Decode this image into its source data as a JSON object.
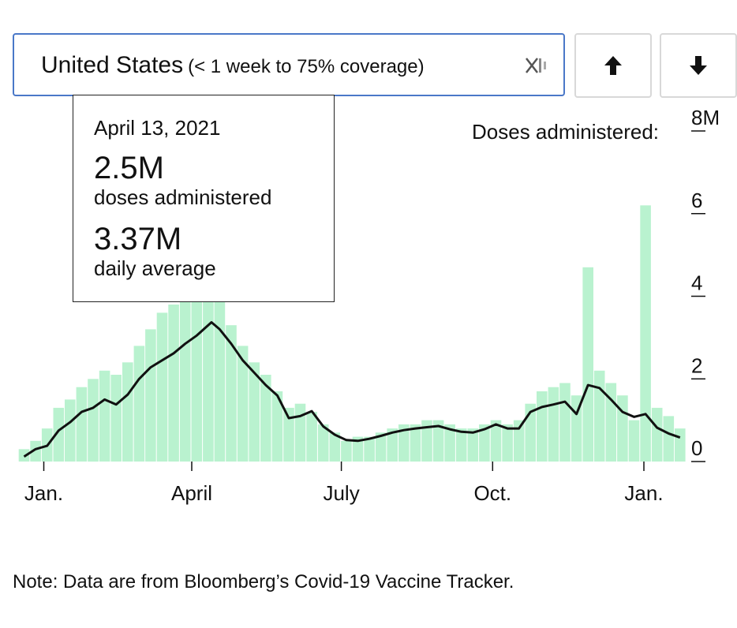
{
  "selector": {
    "country": "United States",
    "note": "(< 1 week to 75% coverage)",
    "clear_icon": "clear-x-icon"
  },
  "buttons": {
    "up_icon": "arrow-up-icon",
    "down_icon": "arrow-down-icon"
  },
  "tooltip": {
    "date": "April 13, 2021",
    "doses_value": "2.5M",
    "doses_label": "doses administered",
    "average_value": "3.37M",
    "average_label": "daily average"
  },
  "colors": {
    "bars": "#b9f2cf",
    "line": "#111111",
    "select_border": "#4a78c8"
  },
  "note": "Note: Data are from Bloomberg’s Covid-19 Vaccine Tracker.",
  "chart_data": {
    "type": "bar",
    "title": "",
    "ylabel": "Doses administered:",
    "yunit": "M",
    "ylim": [
      0,
      8
    ],
    "yticks": [
      0,
      2,
      4,
      6,
      8
    ],
    "ytick_labels": [
      "0",
      "2",
      "4",
      "6",
      "8M"
    ],
    "xlim": [
      "2020-12-14",
      "2022-01-25"
    ],
    "xticks": [
      {
        "date": "2021-01-01",
        "label": "Jan."
      },
      {
        "date": "2021-04-01",
        "label": "April"
      },
      {
        "date": "2021-07-01",
        "label": "July"
      },
      {
        "date": "2021-10-01",
        "label": "Oct."
      },
      {
        "date": "2022-01-01",
        "label": "Jan."
      }
    ],
    "series": [
      {
        "name": "doses administered",
        "values": [
          [
            "2020-12-20",
            0.3
          ],
          [
            "2020-12-27",
            0.5
          ],
          [
            "2021-01-03",
            0.8
          ],
          [
            "2021-01-10",
            1.3
          ],
          [
            "2021-01-17",
            1.5
          ],
          [
            "2021-01-24",
            1.8
          ],
          [
            "2021-01-31",
            2.0
          ],
          [
            "2021-02-07",
            2.2
          ],
          [
            "2021-02-14",
            2.1
          ],
          [
            "2021-02-21",
            2.4
          ],
          [
            "2021-02-28",
            2.8
          ],
          [
            "2021-03-07",
            3.2
          ],
          [
            "2021-03-14",
            3.6
          ],
          [
            "2021-03-21",
            3.8
          ],
          [
            "2021-03-28",
            4.1
          ],
          [
            "2021-04-04",
            4.0
          ],
          [
            "2021-04-11",
            4.2
          ],
          [
            "2021-04-18",
            3.9
          ],
          [
            "2021-04-25",
            3.3
          ],
          [
            "2021-05-02",
            2.8
          ],
          [
            "2021-05-09",
            2.4
          ],
          [
            "2021-05-16",
            2.1
          ],
          [
            "2021-05-23",
            1.7
          ],
          [
            "2021-05-30",
            1.3
          ],
          [
            "2021-06-06",
            1.4
          ],
          [
            "2021-06-13",
            1.2
          ],
          [
            "2021-06-20",
            0.9
          ],
          [
            "2021-06-27",
            0.7
          ],
          [
            "2021-07-04",
            0.5
          ],
          [
            "2021-07-11",
            0.6
          ],
          [
            "2021-07-18",
            0.6
          ],
          [
            "2021-07-25",
            0.7
          ],
          [
            "2021-08-01",
            0.8
          ],
          [
            "2021-08-08",
            0.9
          ],
          [
            "2021-08-15",
            0.9
          ],
          [
            "2021-08-22",
            1.0
          ],
          [
            "2021-08-29",
            1.0
          ],
          [
            "2021-09-05",
            0.9
          ],
          [
            "2021-09-12",
            0.8
          ],
          [
            "2021-09-19",
            0.8
          ],
          [
            "2021-09-26",
            0.9
          ],
          [
            "2021-10-03",
            1.0
          ],
          [
            "2021-10-10",
            0.9
          ],
          [
            "2021-10-17",
            1.0
          ],
          [
            "2021-10-24",
            1.4
          ],
          [
            "2021-10-31",
            1.7
          ],
          [
            "2021-11-07",
            1.8
          ],
          [
            "2021-11-14",
            1.9
          ],
          [
            "2021-11-21",
            1.6
          ],
          [
            "2021-11-28",
            4.7
          ],
          [
            "2021-12-05",
            2.2
          ],
          [
            "2021-12-12",
            1.9
          ],
          [
            "2021-12-19",
            1.6
          ],
          [
            "2021-12-26",
            1.0
          ],
          [
            "2022-01-02",
            6.2
          ],
          [
            "2022-01-09",
            1.3
          ],
          [
            "2022-01-16",
            1.1
          ],
          [
            "2022-01-23",
            0.8
          ]
        ]
      },
      {
        "name": "daily average",
        "values": [
          [
            "2020-12-20",
            0.12
          ],
          [
            "2020-12-27",
            0.3
          ],
          [
            "2021-01-03",
            0.38
          ],
          [
            "2021-01-10",
            0.75
          ],
          [
            "2021-01-17",
            0.95
          ],
          [
            "2021-01-24",
            1.2
          ],
          [
            "2021-01-31",
            1.3
          ],
          [
            "2021-02-07",
            1.5
          ],
          [
            "2021-02-14",
            1.38
          ],
          [
            "2021-02-21",
            1.62
          ],
          [
            "2021-02-28",
            2.0
          ],
          [
            "2021-03-07",
            2.28
          ],
          [
            "2021-03-14",
            2.45
          ],
          [
            "2021-03-21",
            2.62
          ],
          [
            "2021-03-28",
            2.85
          ],
          [
            "2021-04-04",
            3.05
          ],
          [
            "2021-04-13",
            3.37
          ],
          [
            "2021-04-18",
            3.2
          ],
          [
            "2021-04-25",
            2.85
          ],
          [
            "2021-05-02",
            2.45
          ],
          [
            "2021-05-09",
            2.15
          ],
          [
            "2021-05-16",
            1.85
          ],
          [
            "2021-05-23",
            1.6
          ],
          [
            "2021-05-30",
            1.05
          ],
          [
            "2021-06-06",
            1.1
          ],
          [
            "2021-06-13",
            1.22
          ],
          [
            "2021-06-20",
            0.85
          ],
          [
            "2021-06-27",
            0.65
          ],
          [
            "2021-07-04",
            0.52
          ],
          [
            "2021-07-11",
            0.5
          ],
          [
            "2021-07-18",
            0.55
          ],
          [
            "2021-07-25",
            0.62
          ],
          [
            "2021-08-01",
            0.7
          ],
          [
            "2021-08-08",
            0.76
          ],
          [
            "2021-08-15",
            0.8
          ],
          [
            "2021-08-22",
            0.83
          ],
          [
            "2021-08-29",
            0.86
          ],
          [
            "2021-09-05",
            0.78
          ],
          [
            "2021-09-12",
            0.72
          ],
          [
            "2021-09-19",
            0.7
          ],
          [
            "2021-09-26",
            0.78
          ],
          [
            "2021-10-03",
            0.9
          ],
          [
            "2021-10-10",
            0.8
          ],
          [
            "2021-10-17",
            0.8
          ],
          [
            "2021-10-24",
            1.2
          ],
          [
            "2021-10-31",
            1.32
          ],
          [
            "2021-11-07",
            1.38
          ],
          [
            "2021-11-14",
            1.45
          ],
          [
            "2021-11-21",
            1.15
          ],
          [
            "2021-11-28",
            1.85
          ],
          [
            "2021-12-05",
            1.78
          ],
          [
            "2021-12-12",
            1.5
          ],
          [
            "2021-12-19",
            1.2
          ],
          [
            "2021-12-26",
            1.08
          ],
          [
            "2022-01-02",
            1.15
          ],
          [
            "2022-01-09",
            0.82
          ],
          [
            "2022-01-16",
            0.68
          ],
          [
            "2022-01-23",
            0.58
          ]
        ]
      }
    ],
    "grid": false
  }
}
